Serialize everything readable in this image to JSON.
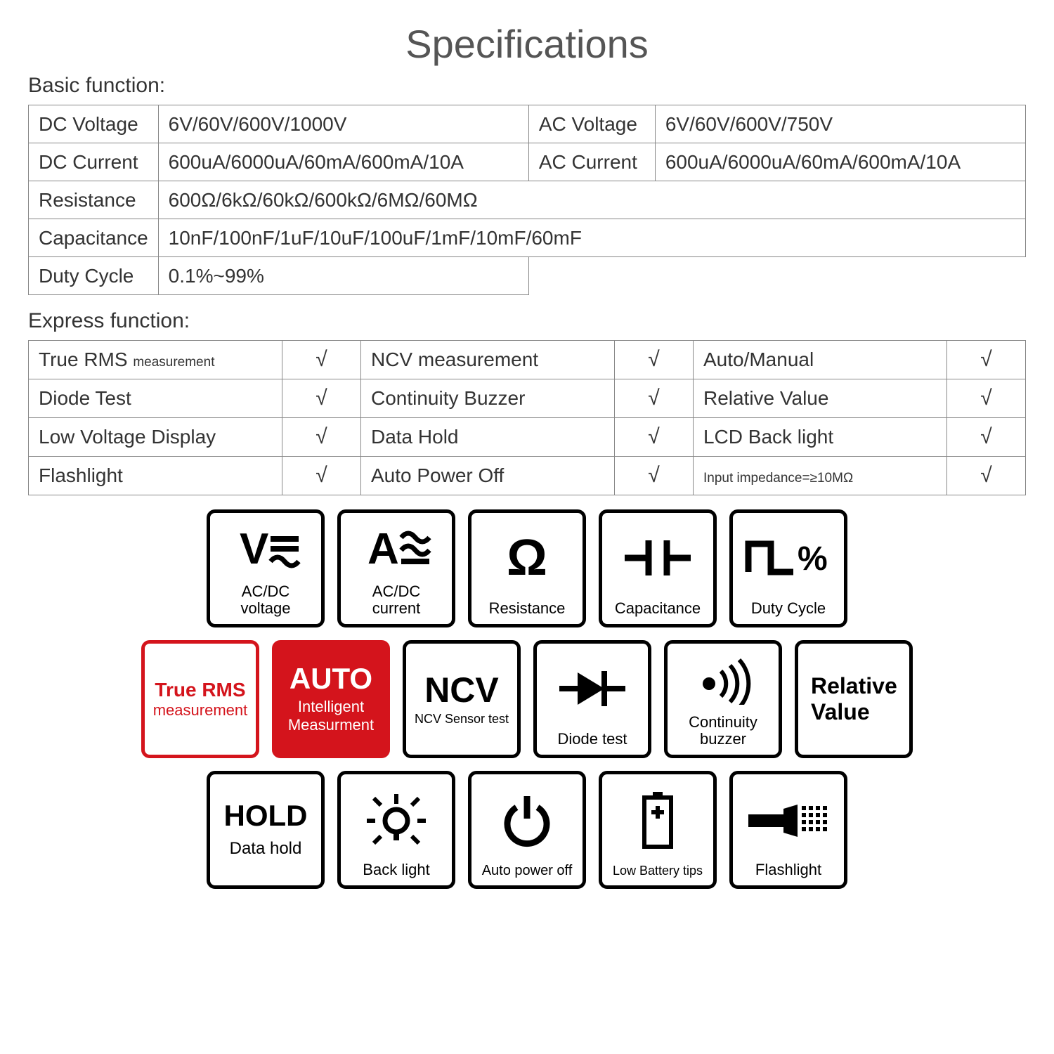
{
  "title": "Specifications",
  "basic_label": "Basic function:",
  "express_label": "Express function:",
  "tick": "√",
  "colors": {
    "border": "#888888",
    "text": "#333333",
    "black": "#000000",
    "red": "#d4141c",
    "white": "#ffffff",
    "title": "#555555"
  },
  "basic": {
    "r1c1": "DC Voltage",
    "r1c2": "6V/60V/600V/1000V",
    "r1c3": "AC Voltage",
    "r1c4": "6V/60V/600V/750V",
    "r2c1": "DC Current",
    "r2c2": "600uA/6000uA/60mA/600mA/10A",
    "r2c3": "AC Current",
    "r2c4": "600uA/6000uA/60mA/600mA/10A",
    "r3c1": "Resistance",
    "r3c2": "600Ω/6kΩ/60kΩ/600kΩ/6MΩ/60MΩ",
    "r4c1": "Capacitance",
    "r4c2": "10nF/100nF/1uF/10uF/100uF/1mF/10mF/60mF",
    "r5c1": "Duty Cycle",
    "r5c2": "0.1%~99%"
  },
  "express": {
    "r1f1_a": "True RMS ",
    "r1f1_b": "measurement",
    "r1f2": "NCV measurement",
    "r1f3": "Auto/Manual",
    "r2f1": "Diode Test",
    "r2f2": "Continuity Buzzer",
    "r2f3": "Relative Value",
    "r3f1": "Low Voltage Display",
    "r3f2": "Data Hold",
    "r3f3": "LCD Back light",
    "r4f1": "Flashlight",
    "r4f2": "Auto Power Off",
    "r4f3_a": "Input impedance=",
    "r4f3_b": "≥10MΩ"
  },
  "icons": {
    "row1": [
      {
        "name": "voltage-icon",
        "label": "AC/DC\nvoltage"
      },
      {
        "name": "current-icon",
        "label": "AC/DC\ncurrent"
      },
      {
        "name": "resistance-icon",
        "label": "Resistance"
      },
      {
        "name": "capacitance-icon",
        "label": "Capacitance"
      },
      {
        "name": "duty-cycle-icon",
        "label": "Duty Cycle"
      }
    ],
    "row2": [
      {
        "name": "true-rms-icon",
        "label_top": "True RMS",
        "label_bottom": "measurement",
        "style": "red-border"
      },
      {
        "name": "auto-icon",
        "label_top": "AUTO",
        "label_bottom": "Intelligent\nMeasurment",
        "style": "red-fill"
      },
      {
        "name": "ncv-icon",
        "label_top": "NCV",
        "label_bottom": "NCV Sensor test"
      },
      {
        "name": "diode-icon",
        "label": "Diode test"
      },
      {
        "name": "continuity-icon",
        "label": "Continuity\nbuzzer"
      },
      {
        "name": "relative-icon",
        "label_top": "Relative",
        "label_bottom": "Value"
      }
    ],
    "row3": [
      {
        "name": "hold-icon",
        "label_top": "HOLD",
        "label_bottom": "Data hold"
      },
      {
        "name": "backlight-icon",
        "label": "Back light"
      },
      {
        "name": "power-off-icon",
        "label": "Auto power off"
      },
      {
        "name": "low-battery-icon",
        "label": "Low Battery tips"
      },
      {
        "name": "flashlight-icon",
        "label": "Flashlight"
      }
    ]
  }
}
